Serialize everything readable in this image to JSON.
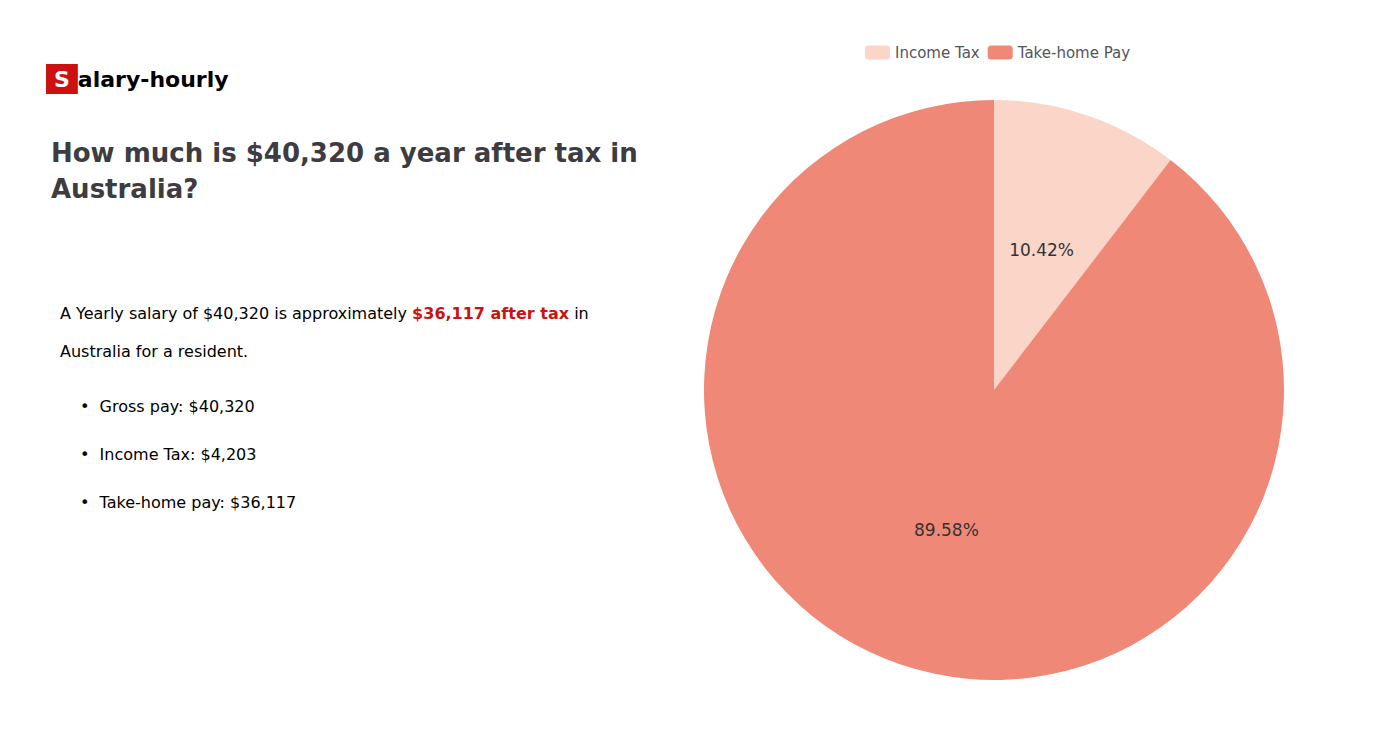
{
  "chart_data": {
    "type": "pie",
    "title": "How much is $40,320 a year after tax in\nAustralia?",
    "annotations": [
      [
        {
          "text": "S",
          "color": "#cc1111"
        },
        {
          "text": "alary-hourly"
        }
      ],
      [
        {
          "text": "A Yearly salary of $40,320 is approximately "
        },
        {
          "text": "$36,117 after tax",
          "color": "#cc1111"
        },
        {
          "text": " in"
        }
      ],
      [
        {
          "text": "Australia for a resident."
        }
      ],
      [
        {
          "text": "•  Gross pay: $40,320"
        }
      ],
      [
        {
          "text": "•  Income Tax: $4,203"
        }
      ],
      [
        {
          "text": "•  Take-home pay: $36,117"
        }
      ]
    ],
    "categories": [
      "Income Tax",
      "Take-home Pay"
    ],
    "values": [
      10.42,
      89.58
    ],
    "value_labels": [
      "10.42%",
      "89.58%"
    ],
    "colors": [
      "#fad5c8",
      "#f08878"
    ],
    "data_labels": true,
    "legend": "top"
  }
}
